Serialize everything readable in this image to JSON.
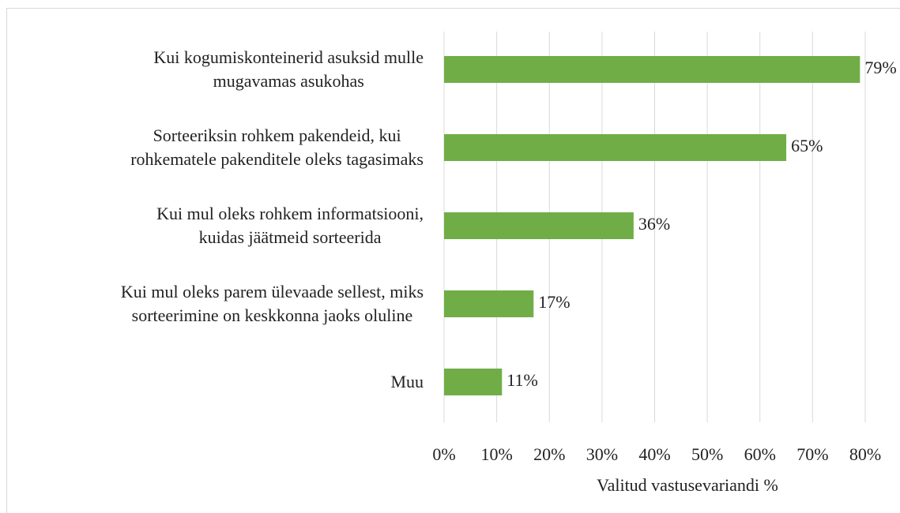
{
  "chart_data": {
    "type": "barh",
    "categories": [
      "Kui kogumiskonteinerid asuksid mulle\nmugavamas asukohas",
      "Sorteeriksin rohkem pakendeid, kui\nrohkematele pakenditele oleks tagasimaks",
      "Kui mul oleks rohkem informatsiooni,\nkuidas jäätmeid sorteerida",
      "Kui mul oleks parem ülevaade sellest, miks\nsorteerimine on keskkonna jaoks oluline",
      "Muu"
    ],
    "values": [
      79,
      65,
      36,
      17,
      11
    ],
    "value_labels": [
      "79%",
      "65%",
      "36%",
      "17%",
      "11%"
    ],
    "color": "#70ad47",
    "xlabel": "Valitud vastusevariandi %",
    "xlim": [
      0,
      80
    ],
    "xticks": [
      {
        "value": 0,
        "label": "0%"
      },
      {
        "value": 10,
        "label": "10%"
      },
      {
        "value": 20,
        "label": "20%"
      },
      {
        "value": 30,
        "label": "30%"
      },
      {
        "value": 40,
        "label": "40%"
      },
      {
        "value": 50,
        "label": "50%"
      },
      {
        "value": 60,
        "label": "60%"
      },
      {
        "value": 70,
        "label": "70%"
      },
      {
        "value": 80,
        "label": "80%"
      }
    ],
    "grid": true
  }
}
